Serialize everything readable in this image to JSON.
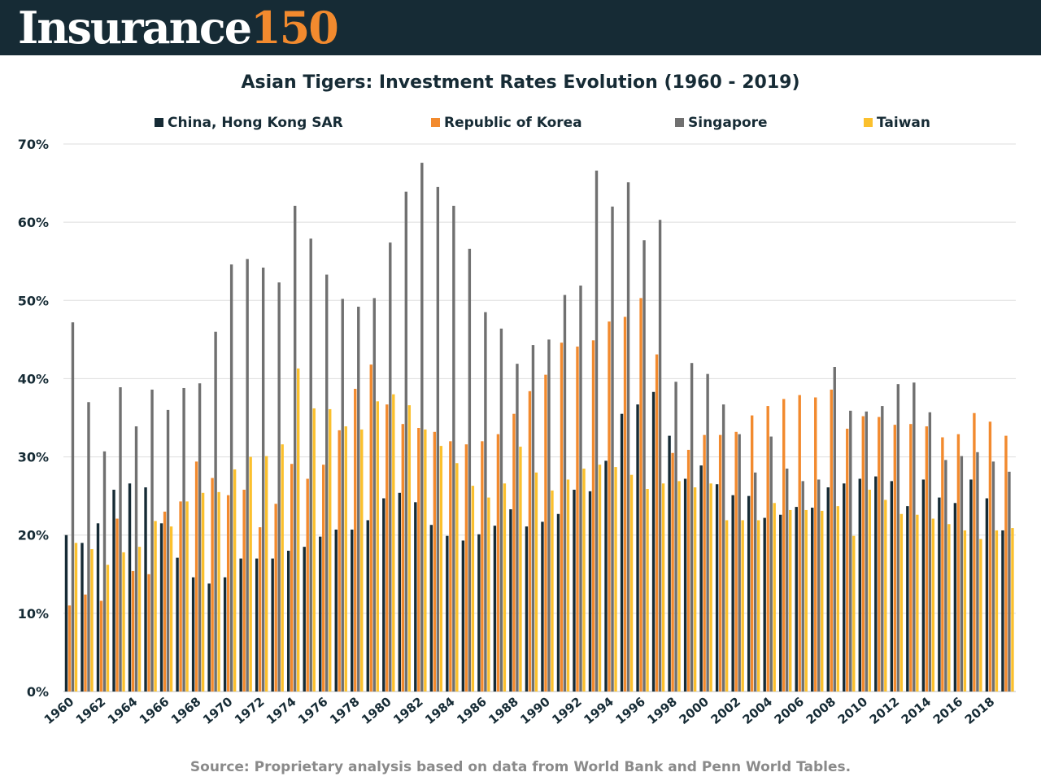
{
  "brand": {
    "word": "Insurance",
    "number": "150"
  },
  "colors": {
    "header_bg": "#162b35",
    "brand_accent": "#f28a2e",
    "series": [
      "#162b35",
      "#f28a2e",
      "#707070",
      "#fbc02d"
    ]
  },
  "chart_data": {
    "type": "bar",
    "title": "Asian Tigers: Investment Rates Evolution (1960 - 2019)",
    "source": "Source: Proprietary analysis based on data from World Bank and Penn World Tables.",
    "ylim": [
      0,
      70
    ],
    "yticks": [
      "0%",
      "10%",
      "20%",
      "30%",
      "40%",
      "50%",
      "60%",
      "70%"
    ],
    "grid": true,
    "legend_position": "top",
    "categories": [
      1960,
      1961,
      1962,
      1963,
      1964,
      1965,
      1966,
      1967,
      1968,
      1969,
      1970,
      1971,
      1972,
      1973,
      1974,
      1975,
      1976,
      1977,
      1978,
      1979,
      1980,
      1981,
      1982,
      1983,
      1984,
      1985,
      1986,
      1987,
      1988,
      1989,
      1990,
      1991,
      1992,
      1993,
      1994,
      1995,
      1996,
      1997,
      1998,
      1999,
      2000,
      2001,
      2002,
      2003,
      2004,
      2005,
      2006,
      2007,
      2008,
      2009,
      2010,
      2011,
      2012,
      2013,
      2014,
      2015,
      2016,
      2017,
      2018,
      2019
    ],
    "xtick_labels": [
      "1960",
      "1962",
      "1964",
      "1966",
      "1968",
      "1970",
      "1972",
      "1974",
      "1976",
      "1978",
      "1980",
      "1982",
      "1984",
      "1986",
      "1988",
      "1990",
      "1992",
      "1994",
      "1996",
      "1998",
      "2000",
      "2002",
      "2004",
      "2006",
      "2008",
      "2010",
      "2012",
      "2014",
      "2016",
      "2018"
    ],
    "series": [
      {
        "name": "China, Hong Kong SAR",
        "values": [
          20.0,
          19.0,
          21.5,
          25.8,
          26.6,
          26.1,
          21.5,
          17.1,
          14.6,
          13.8,
          14.6,
          17.0,
          17.0,
          17.0,
          18.0,
          18.5,
          19.8,
          20.7,
          20.7,
          21.9,
          24.7,
          25.4,
          24.2,
          21.3,
          19.9,
          19.3,
          20.1,
          21.2,
          23.3,
          21.1,
          21.7,
          22.7,
          25.8,
          25.6,
          29.5,
          35.5,
          36.7,
          38.3,
          32.7,
          27.2,
          28.9,
          26.5,
          25.1,
          25.0,
          22.2,
          22.6,
          23.6,
          23.5,
          26.1,
          26.6,
          27.2,
          27.5,
          26.9,
          23.7,
          27.1,
          24.8,
          24.1,
          27.1,
          24.7,
          20.6
        ]
      },
      {
        "name": "Republic of Korea",
        "values": [
          11.0,
          12.4,
          11.6,
          22.1,
          15.4,
          15.0,
          23.0,
          24.3,
          29.4,
          27.3,
          25.1,
          25.8,
          21.0,
          24.0,
          29.1,
          27.2,
          29.0,
          33.4,
          38.7,
          41.8,
          36.7,
          34.2,
          33.7,
          33.2,
          32.0,
          31.6,
          32.0,
          32.9,
          35.5,
          38.4,
          40.5,
          44.6,
          44.1,
          44.9,
          47.3,
          47.9,
          50.3,
          43.1,
          30.5,
          30.9,
          32.8,
          32.8,
          33.2,
          35.3,
          36.5,
          37.4,
          37.9,
          37.6,
          38.6,
          33.6,
          35.2,
          35.1,
          34.1,
          34.2,
          33.9,
          32.5,
          32.9,
          35.6,
          34.5,
          32.7
        ]
      },
      {
        "name": "Singapore",
        "values": [
          47.2,
          37.0,
          30.7,
          38.9,
          33.9,
          38.6,
          36.0,
          38.8,
          39.4,
          46.0,
          54.6,
          55.3,
          54.2,
          52.3,
          62.1,
          57.9,
          53.3,
          50.2,
          49.2,
          50.3,
          57.4,
          63.9,
          67.6,
          64.5,
          62.1,
          56.6,
          48.5,
          46.4,
          41.9,
          44.3,
          45.0,
          50.7,
          51.9,
          66.6,
          62.0,
          65.1,
          57.7,
          60.3,
          39.6,
          42.0,
          40.6,
          36.7,
          32.9,
          28.0,
          32.6,
          28.5,
          26.9,
          27.1,
          41.5,
          35.9,
          35.8,
          36.5,
          39.3,
          39.5,
          35.7,
          29.6,
          30.1,
          30.6,
          29.4,
          28.1
        ]
      },
      {
        "name": "Taiwan",
        "values": [
          19.0,
          18.2,
          16.2,
          17.8,
          18.5,
          21.8,
          21.1,
          24.3,
          25.4,
          25.5,
          28.4,
          30.0,
          30.1,
          31.6,
          41.3,
          36.2,
          36.1,
          33.9,
          33.5,
          37.1,
          38.0,
          36.6,
          33.5,
          31.4,
          29.2,
          26.3,
          24.8,
          26.6,
          31.3,
          28.0,
          25.7,
          27.1,
          28.5,
          29.0,
          28.7,
          27.7,
          25.9,
          26.6,
          26.9,
          26.1,
          26.6,
          21.9,
          21.9,
          21.9,
          24.1,
          23.2,
          23.2,
          23.1,
          23.7,
          19.9,
          25.8,
          24.5,
          22.7,
          22.6,
          22.1,
          21.4,
          20.6,
          19.5,
          20.6,
          20.9
        ]
      }
    ]
  }
}
